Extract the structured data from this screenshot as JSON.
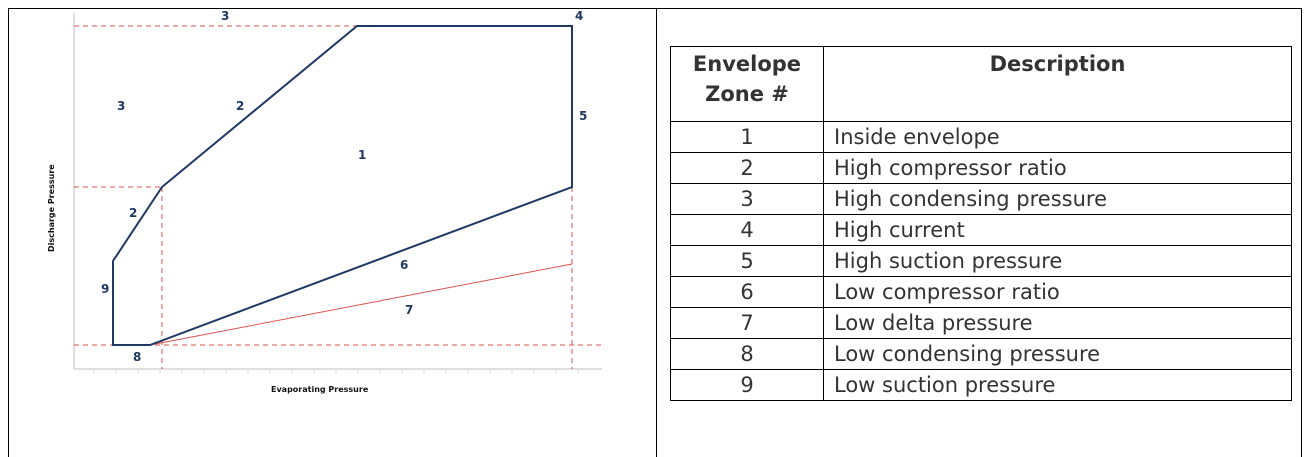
{
  "diagram": {
    "x_axis_label": "Evaporating Pressure",
    "y_axis_label": "Discharge Pressure",
    "zone_labels": [
      {
        "text": "3",
        "id": "top-3"
      },
      {
        "text": "4",
        "id": "top-4"
      },
      {
        "text": "3",
        "id": "left-3"
      },
      {
        "text": "2",
        "id": "upper-2"
      },
      {
        "text": "5",
        "id": "right-5"
      },
      {
        "text": "1",
        "id": "center-1"
      },
      {
        "text": "2",
        "id": "lower-2"
      },
      {
        "text": "6",
        "id": "mid-6"
      },
      {
        "text": "9",
        "id": "left-9"
      },
      {
        "text": "7",
        "id": "mid-7"
      },
      {
        "text": "8",
        "id": "bottom-8"
      }
    ],
    "colors": {
      "envelope": "#1f3864",
      "limit_lines": "#d9534f",
      "labels": "#1f3864"
    }
  },
  "table": {
    "headers": [
      "Envelope Zone #",
      "Description"
    ],
    "header_zone_lines": [
      "Envelope",
      "Zone #"
    ],
    "rows": [
      {
        "zone": "1",
        "description": "Inside envelope"
      },
      {
        "zone": "2",
        "description": "High compressor ratio"
      },
      {
        "zone": "3",
        "description": "High condensing pressure"
      },
      {
        "zone": "4",
        "description": "High current"
      },
      {
        "zone": "5",
        "description": "High suction pressure"
      },
      {
        "zone": "6",
        "description": "Low compressor ratio"
      },
      {
        "zone": "7",
        "description": "Low delta pressure"
      },
      {
        "zone": "8",
        "description": "Low condensing pressure"
      },
      {
        "zone": "9",
        "description": "Low suction pressure"
      }
    ]
  }
}
